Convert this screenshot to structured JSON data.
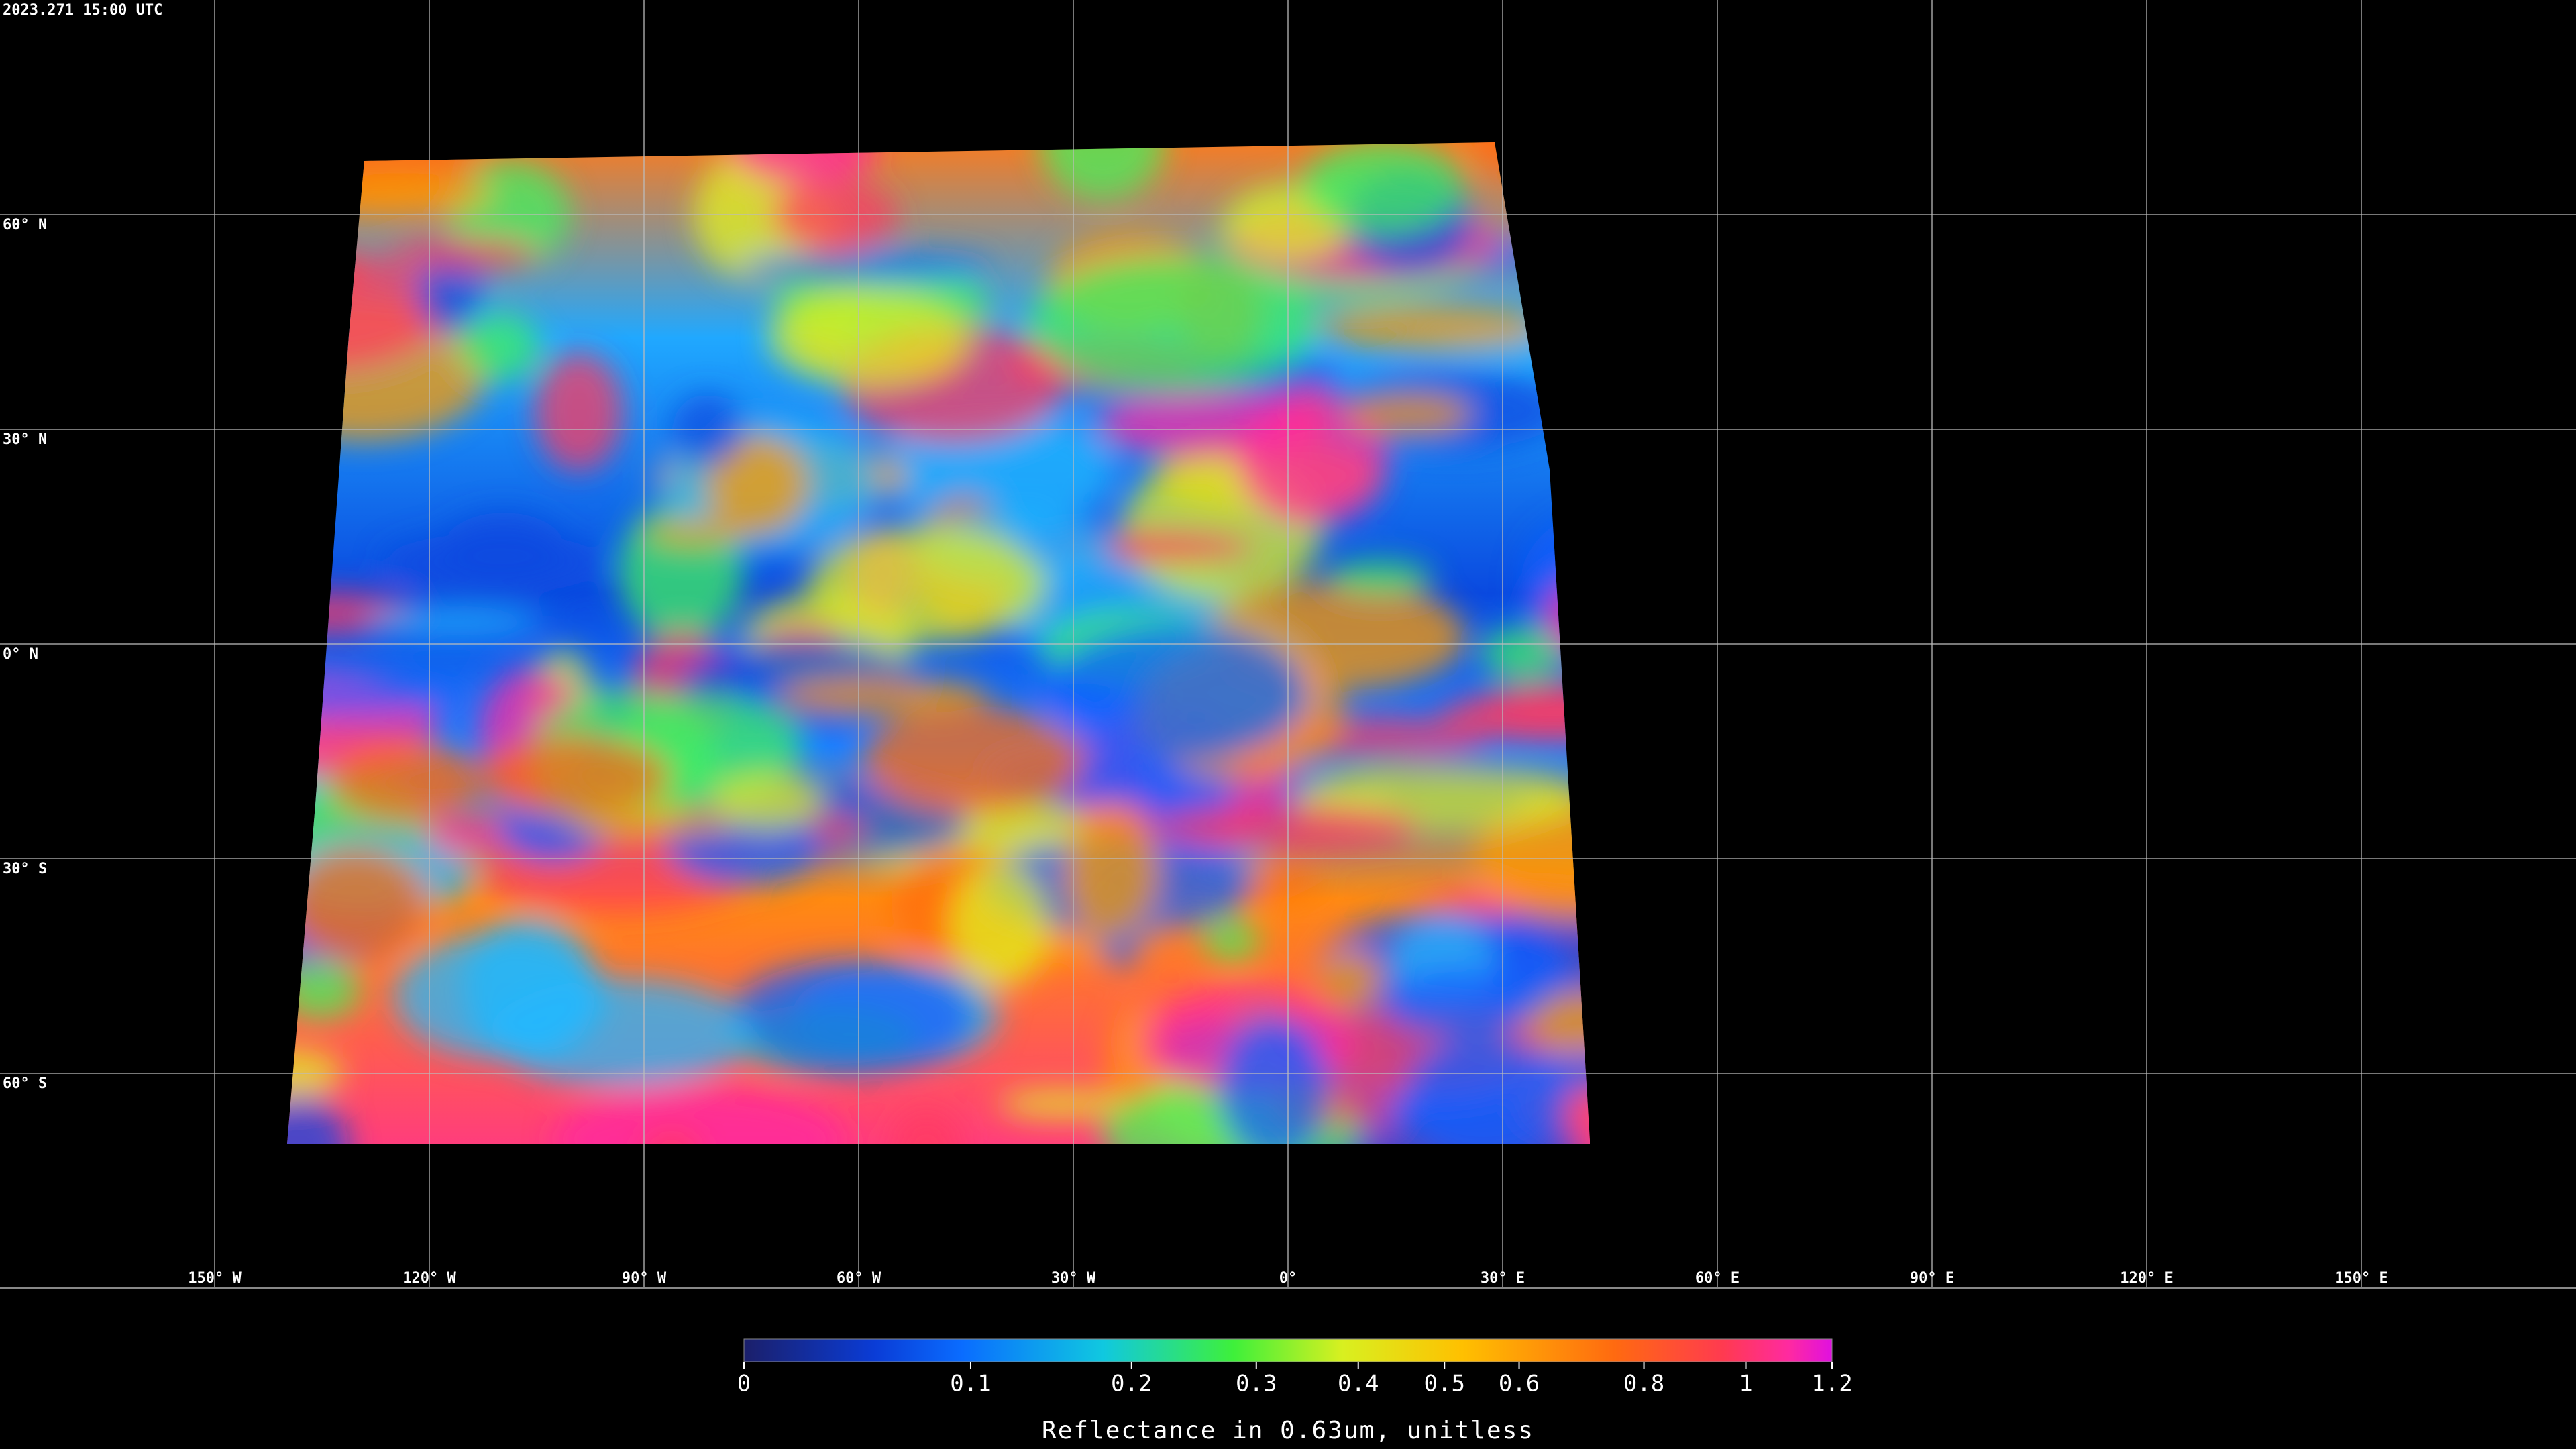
{
  "timestamp": "2023.271 15:00 UTC",
  "map": {
    "latitudes": [
      {
        "value": 60,
        "label": "60° N"
      },
      {
        "value": 30,
        "label": "30° N"
      },
      {
        "value": 0,
        "label": "0° N"
      },
      {
        "value": -30,
        "label": "30° S"
      },
      {
        "value": -60,
        "label": "60° S"
      }
    ],
    "longitudes": [
      {
        "value": -150,
        "label": "150° W"
      },
      {
        "value": -120,
        "label": "120° W"
      },
      {
        "value": -90,
        "label": "90° W"
      },
      {
        "value": -60,
        "label": "60° W"
      },
      {
        "value": -30,
        "label": "30° W"
      },
      {
        "value": 0,
        "label": "0°"
      },
      {
        "value": 30,
        "label": "30° E"
      },
      {
        "value": 60,
        "label": "60° E"
      },
      {
        "value": 90,
        "label": "90° E"
      },
      {
        "value": 120,
        "label": "120° E"
      },
      {
        "value": 150,
        "label": "150° E"
      }
    ]
  },
  "colorbar": {
    "title": "Reflectance in 0.63um, unitless",
    "range": [
      0,
      1.2
    ],
    "ticks": [
      0,
      0.1,
      0.2,
      0.3,
      0.4,
      0.5,
      0.6,
      0.8,
      1,
      1.2
    ]
  }
}
